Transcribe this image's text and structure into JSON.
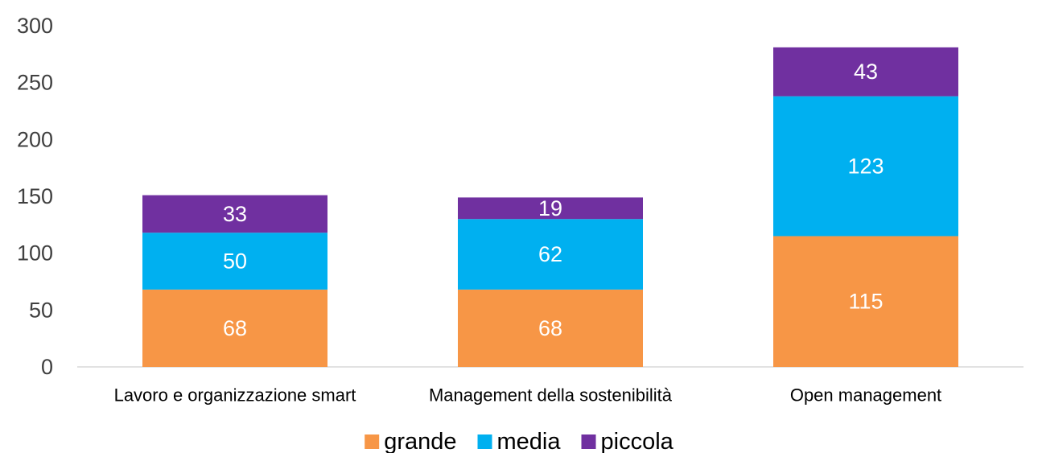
{
  "chart_data": {
    "type": "bar",
    "stacked": true,
    "categories": [
      "Lavoro e organizzazione smart",
      "Management della sostenibilità",
      "Open management"
    ],
    "series": [
      {
        "name": "grande",
        "values": [
          68,
          68,
          115
        ],
        "color": "#F79646"
      },
      {
        "name": "media",
        "values": [
          50,
          62,
          123
        ],
        "color": "#00B0F0"
      },
      {
        "name": "piccola",
        "values": [
          33,
          19,
          43
        ],
        "color": "#7030A0"
      }
    ],
    "ylim": [
      0,
      300
    ],
    "yticks": [
      0,
      50,
      100,
      150,
      200,
      250,
      300
    ],
    "grid": false,
    "legend": "bottom",
    "data_labels": true
  }
}
